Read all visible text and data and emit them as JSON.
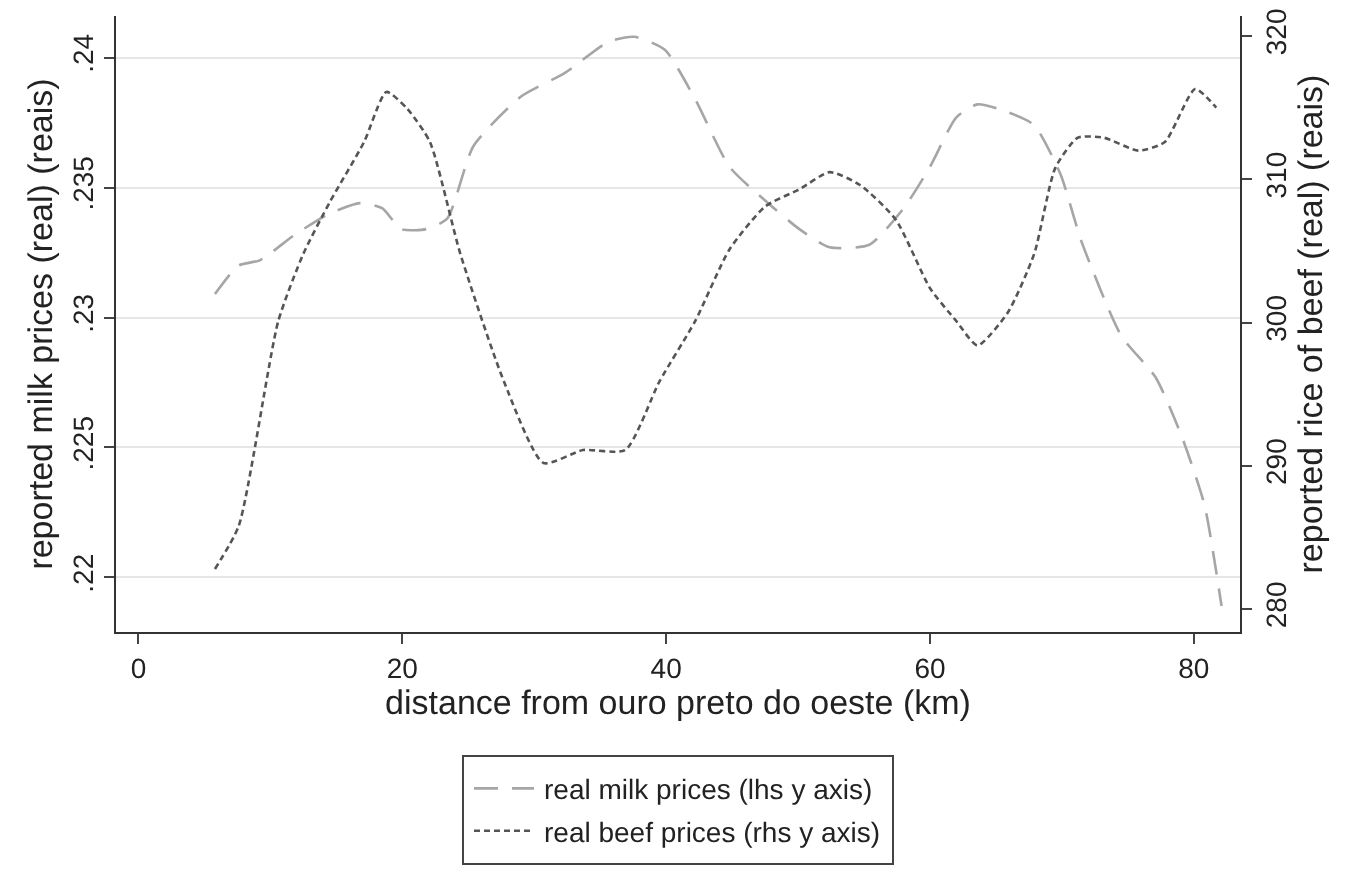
{
  "chart_data": {
    "type": "line",
    "xlabel": "distance from ouro preto do oeste (km)",
    "ylabel": "reported milk prices (real) (reais)",
    "y2label": "reported rice of beef (real) (reais)",
    "xlim": [
      -1.7,
      83.5
    ],
    "xticks": [
      0,
      20,
      40,
      60,
      80
    ],
    "ylim": [
      0.2179,
      0.2416
    ],
    "yticks": [
      {
        "value": 0.22,
        "label": ".22"
      },
      {
        "value": 0.225,
        "label": ".225"
      },
      {
        "value": 0.23,
        "label": ".23"
      },
      {
        "value": 0.235,
        "label": ".235"
      },
      {
        "value": 0.24,
        "label": ".24"
      }
    ],
    "y2lim": [
      278.4,
      321.4
    ],
    "y2ticks": [
      280,
      290,
      300,
      310,
      320
    ],
    "grid": "y",
    "legend": "bottom",
    "marker": "none",
    "series": [
      {
        "name": "real milk prices (lhs y axis)",
        "color": "#a6a6a6",
        "line_style": "dashed",
        "x": [
          5.8,
          7.6,
          9.2,
          11.9,
          14.5,
          16.8,
          18.5,
          19.9,
          21.8,
          23.4,
          25.4,
          29.0,
          32.3,
          35.6,
          37.6,
          39.9,
          42.2,
          44.8,
          47.5,
          50.1,
          52.4,
          55.4,
          58.0,
          60,
          62,
          63.6,
          65.9,
          67.9,
          69.9,
          71.5,
          74.5,
          77.1,
          79.1,
          80.8,
          82.1
        ],
        "values": [
          0.2309,
          0.232,
          0.2322,
          0.2332,
          0.234,
          0.2344,
          0.2342,
          0.2334,
          0.2334,
          0.2338,
          0.2366,
          0.2385,
          0.2394,
          0.2406,
          0.2408,
          0.2403,
          0.2384,
          0.2358,
          0.2345,
          0.2334,
          0.2327,
          0.2328,
          0.2342,
          0.2358,
          0.2377,
          0.2382,
          0.2379,
          0.2374,
          0.2355,
          0.2329,
          0.2293,
          0.2277,
          0.2254,
          0.2228,
          0.2189
        ]
      },
      {
        "name": "real beef prices (rhs y axis)",
        "color": "#555555",
        "line_style": "dotted",
        "axis": "y2",
        "x": [
          5.8,
          7.6,
          10.6,
          12.5,
          14.5,
          17.1,
          18.8,
          20.4,
          22.1,
          24.4,
          27.7,
          30.7,
          33.7,
          36.9,
          39.5,
          42.2,
          44.8,
          47.5,
          50.1,
          52.4,
          54.7,
          57.4,
          60,
          62,
          63.6,
          65.9,
          67.9,
          69.5,
          71.2,
          73.2,
          75.8,
          77.8,
          80.1,
          81.7
        ],
        "values": [
          282.8,
          285.8,
          300.1,
          304.8,
          308.4,
          312.6,
          316.1,
          314.9,
          312.6,
          304.8,
          295.9,
          290.2,
          291.1,
          291.1,
          295.9,
          300.1,
          305.1,
          308.1,
          309.3,
          310.5,
          309.6,
          307.2,
          302.4,
          300.1,
          298.4,
          300.7,
          304.8,
          310.8,
          312.9,
          312.9,
          312.0,
          312.6,
          316.3,
          315.0
        ]
      }
    ]
  }
}
